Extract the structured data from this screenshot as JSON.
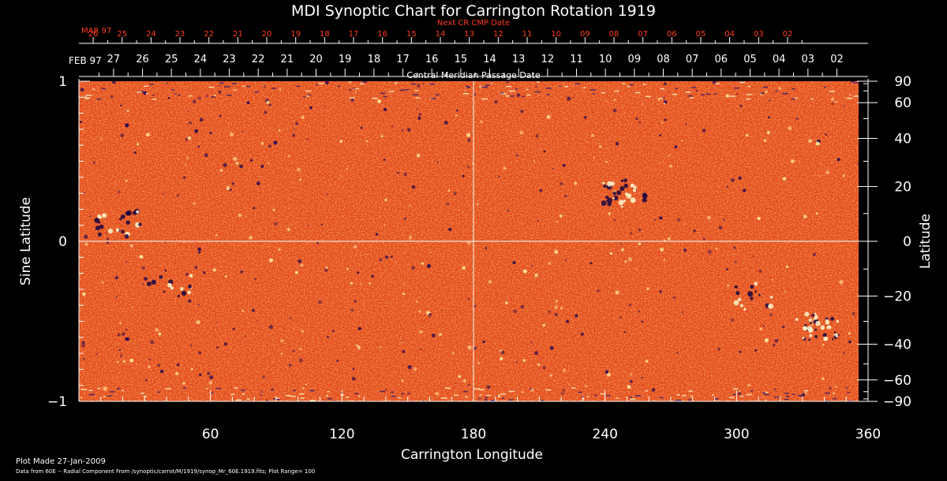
{
  "chart_data": {
    "type": "heatmap",
    "title": "MDI Synoptic Chart for Carrington Rotation 1919",
    "xlabel": "Carrington Longitude",
    "ylabel_left": "Sine Latitude",
    "ylabel_right": "Latitude",
    "top_axis_label": "Central Meridian Passage Date",
    "next_axis_label": "Next CR CMP Date",
    "xlim": [
      0,
      360
    ],
    "x_ticks": [
      60,
      120,
      180,
      240,
      300,
      360
    ],
    "ylim_sine": [
      -1,
      1
    ],
    "y_ticks_sine": [
      "1",
      "0",
      "−1"
    ],
    "y_ticks_lat": [
      "90",
      "60",
      "40",
      "20",
      "0",
      "−20",
      "−40",
      "−60",
      "−90"
    ],
    "cmp_month_label": "FEB 97",
    "cmp_dates": [
      "27",
      "26",
      "25",
      "24",
      "23",
      "22",
      "21",
      "20",
      "19",
      "18",
      "17",
      "16",
      "15",
      "14",
      "13",
      "12",
      "11",
      "10",
      "09",
      "08",
      "07",
      "06",
      "05",
      "04",
      "03",
      "02"
    ],
    "next_month_label": "MAR 97",
    "next_dates": [
      "26",
      "25",
      "24",
      "23",
      "22",
      "21",
      "20",
      "19",
      "18",
      "17",
      "16",
      "15",
      "14",
      "13",
      "12",
      "11",
      "10",
      "09",
      "08",
      "07",
      "06",
      "05",
      "04",
      "03",
      "02"
    ],
    "plot_range": 100,
    "colors": {
      "background": "#000000",
      "map_base": "#e8481a",
      "text": "#ffffff",
      "next_axis": "#ff3b1f"
    }
  },
  "footer": {
    "plot_made": "Plot Made 27-Jan-2009",
    "data_note": "Data from 60E -- Radial Component From /synoptic/carrot/M/1919/synop_Mr_60E.1919.fits; Plot Range=  100"
  }
}
